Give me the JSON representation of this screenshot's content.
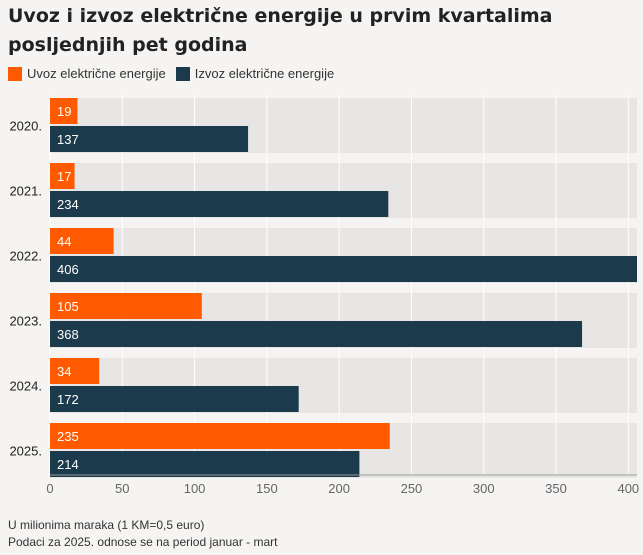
{
  "chart_data": {
    "type": "bar",
    "orientation": "horizontal",
    "title": "Uvoz i izvoz električne energije u prvim kvartalima posljednjih pet godina",
    "categories": [
      "2020.",
      "2021.",
      "2022.",
      "2023.",
      "2024.",
      "2025."
    ],
    "series": [
      {
        "name": "Uvoz električne energije",
        "color": "#ff5a00",
        "values": [
          19,
          17,
          44,
          105,
          34,
          235
        ]
      },
      {
        "name": "Izvoz električne energije",
        "color": "#1b3a4b",
        "values": [
          137,
          234,
          406,
          368,
          172,
          214
        ]
      }
    ],
    "xlim": [
      0,
      406
    ],
    "xticks": [
      0,
      50,
      100,
      150,
      200,
      250,
      300,
      350,
      400
    ],
    "grid": true,
    "legend_position": "top-left"
  },
  "footnotes": {
    "line1": "U milionima maraka (1 KM=0,5 euro)",
    "line2": "Podaci za 2025. odnose se na period januar - mart"
  }
}
